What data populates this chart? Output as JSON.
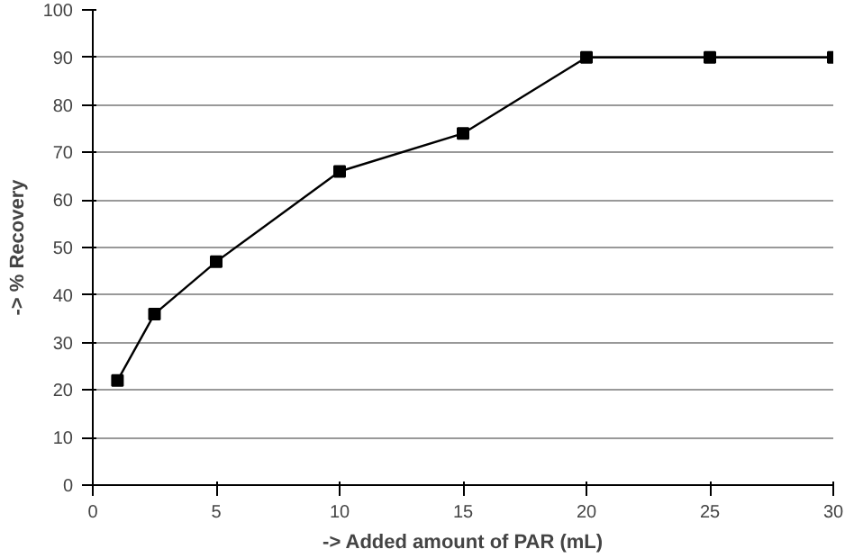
{
  "chart_data": {
    "type": "line",
    "xlabel": "-> Added amount of PAR (mL)",
    "ylabel": "-> % Recovery",
    "x": [
      1,
      2.5,
      5,
      10,
      15,
      20,
      25,
      30
    ],
    "series": [
      {
        "color": "#000000",
        "values": [
          22,
          36,
          47,
          66,
          74,
          90,
          90,
          90
        ]
      }
    ],
    "xlim": [
      0,
      30
    ],
    "xticks": [
      0,
      5,
      10,
      15,
      20,
      25,
      30
    ],
    "ylim": [
      0,
      100
    ],
    "yticks": [
      0,
      10,
      20,
      30,
      40,
      50,
      60,
      70,
      80,
      90,
      100
    ],
    "grid": "y",
    "marker": "square",
    "line_style": "solid"
  }
}
